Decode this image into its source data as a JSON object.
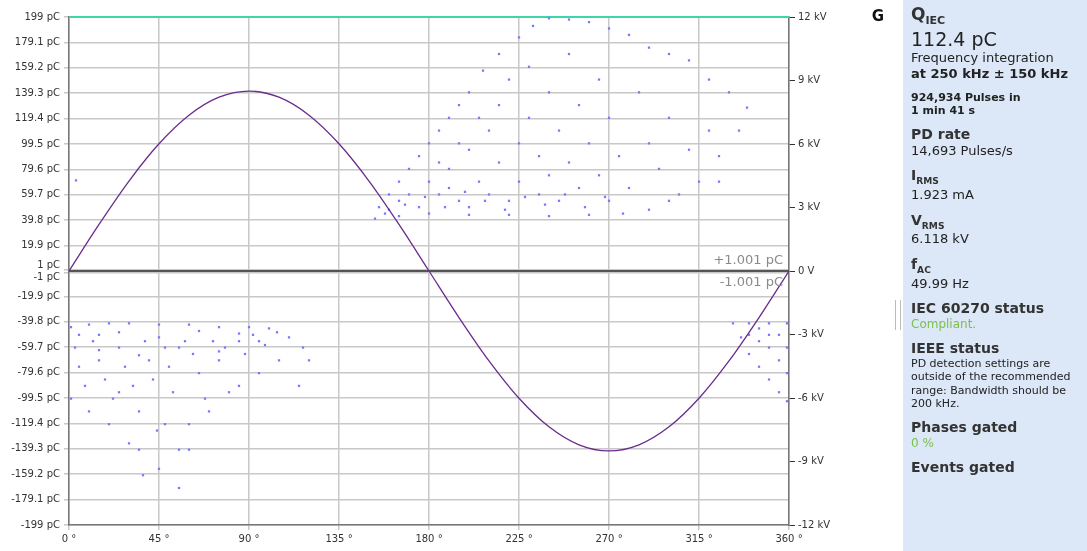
{
  "chart_data": [
    {
      "type": "scatter",
      "xlim": [
        0,
        360
      ],
      "xticks": [
        {
          "value": 0,
          "label": "0 °"
        },
        {
          "value": 45,
          "label": "45 °"
        },
        {
          "value": 90,
          "label": "90 °"
        },
        {
          "value": 135,
          "label": "135 °"
        },
        {
          "value": 180,
          "label": "180 °"
        },
        {
          "value": 225,
          "label": "225 °"
        },
        {
          "value": 270,
          "label": "270 °"
        },
        {
          "value": 315,
          "label": "315 °"
        },
        {
          "value": 360,
          "label": "360 °"
        }
      ],
      "ylim": [
        -199,
        199
      ],
      "yticks": [
        {
          "value": 199,
          "label": "199 pC"
        },
        {
          "value": 179.1,
          "label": "179.1 pC"
        },
        {
          "value": 159.2,
          "label": "159.2 pC"
        },
        {
          "value": 139.3,
          "label": "139.3 pC"
        },
        {
          "value": 119.4,
          "label": "119.4 pC"
        },
        {
          "value": 99.5,
          "label": "99.5 pC"
        },
        {
          "value": 79.6,
          "label": "79.6 pC"
        },
        {
          "value": 59.7,
          "label": "59.7 pC"
        },
        {
          "value": 39.8,
          "label": "39.8 pC"
        },
        {
          "value": 19.9,
          "label": "19.9 pC"
        },
        {
          "value": 1,
          "label": "1 pC"
        },
        {
          "value": -1,
          "label": "-1 pC"
        },
        {
          "value": -19.9,
          "label": "-19.9 pC"
        },
        {
          "value": -39.8,
          "label": "-39.8 pC"
        },
        {
          "value": -59.7,
          "label": "-59.7 pC"
        },
        {
          "value": -79.6,
          "label": "-79.6 pC"
        },
        {
          "value": -99.5,
          "label": "-99.5 pC"
        },
        {
          "value": -119.4,
          "label": "-119.4 pC"
        },
        {
          "value": -139.3,
          "label": "-139.3 pC"
        },
        {
          "value": -159.2,
          "label": "-159.2 pC"
        },
        {
          "value": -179.1,
          "label": "-179.1 pC"
        },
        {
          "value": -199,
          "label": "-199 pC"
        }
      ],
      "y2lim": [
        -12,
        12
      ],
      "y2ticks": [
        {
          "value": 12,
          "label": "12 kV"
        },
        {
          "value": 9,
          "label": "9 kV"
        },
        {
          "value": 6,
          "label": "6 kV"
        },
        {
          "value": 3,
          "label": "3 kV"
        },
        {
          "value": 0,
          "label": "0 V"
        },
        {
          "value": -3,
          "label": "-3 kV"
        },
        {
          "value": -6,
          "label": "-6 kV"
        },
        {
          "value": -9,
          "label": "-9 kV"
        },
        {
          "value": -12,
          "label": "-12 kV"
        }
      ],
      "grid": true,
      "legend": false,
      "marker": "square",
      "ref_lines": [
        {
          "axis": "y",
          "value": 199,
          "color": "#3ed6a6"
        },
        {
          "axis": "y",
          "value": 0,
          "color": "#555555"
        }
      ],
      "annotations": [
        "G",
        "+1.001 pC",
        "-1.001 pC"
      ],
      "series": [
        {
          "color": "#7878ff",
          "x": [
            153,
            155,
            160,
            165,
            170,
            175,
            180,
            185,
            190,
            195,
            200,
            207,
            215,
            225,
            232,
            240,
            250,
            260,
            270,
            280,
            290,
            300,
            310,
            320,
            330,
            339,
            335,
            325,
            315,
            300,
            290,
            277,
            260,
            240,
            220,
            200,
            180,
            165,
            160,
            165,
            170,
            175,
            180,
            185,
            190,
            195,
            200,
            205,
            210,
            210,
            215,
            215,
            220,
            220,
            225,
            225,
            230,
            230,
            235,
            235,
            240,
            240,
            245,
            245,
            250,
            250,
            255,
            255,
            260,
            265,
            265,
            270,
            270,
            275,
            280,
            285,
            290,
            295,
            300,
            305,
            310,
            320,
            325,
            185,
            195,
            205,
            200,
            190,
            3.5,
            158,
            168,
            178,
            188,
            198,
            208,
            218,
            228,
            238,
            248,
            258,
            268
          ],
          "values": [
            41,
            50,
            60,
            70,
            80,
            90,
            100,
            110,
            120,
            130,
            140,
            157,
            170,
            183,
            192,
            198,
            197,
            195,
            190,
            185,
            175,
            170,
            165,
            150,
            140,
            128,
            110,
            90,
            70,
            55,
            48,
            45,
            44,
            43,
            44,
            44,
            45,
            43,
            48,
            55,
            60,
            50,
            70,
            60,
            80,
            55,
            95,
            70,
            110,
            60,
            130,
            85,
            150,
            55,
            100,
            70,
            160,
            120,
            90,
            60,
            140,
            75,
            110,
            55,
            170,
            85,
            130,
            65,
            100,
            150,
            75,
            55,
            120,
            90,
            65,
            140,
            100,
            80,
            120,
            60,
            95,
            110,
            70,
            85,
            100,
            120,
            50,
            65,
            71,
            45,
            52,
            58,
            50,
            62,
            55,
            48,
            58,
            52,
            60,
            50,
            58
          ]
        },
        {
          "color": "#7878ff",
          "x": [
            1,
            10,
            20,
            30,
            45,
            60,
            75,
            90,
            100,
            104,
            110,
            117,
            105,
            95,
            80,
            70,
            60,
            55,
            45,
            37,
            30,
            20,
            10,
            1,
            3,
            5,
            8,
            12,
            15,
            18,
            22,
            25,
            28,
            32,
            35,
            38,
            40,
            42,
            44,
            48,
            50,
            52,
            55,
            58,
            62,
            65,
            68,
            72,
            75,
            78,
            85,
            88,
            92,
            98,
            48,
            35,
            25,
            15,
            60,
            85,
            120,
            115,
            332,
            340,
            350,
            359,
            359,
            359,
            359,
            355,
            350,
            345,
            340,
            336,
            340,
            345,
            350,
            355,
            350,
            355,
            345,
            5,
            15,
            25,
            35,
            45,
            55,
            65,
            75,
            85,
            95
          ],
          "values": [
            -44,
            -42,
            -41,
            -41,
            -42,
            -42,
            -44,
            -44,
            -45,
            -48,
            -52,
            -60,
            -70,
            -80,
            -95,
            -110,
            -140,
            -170,
            -155,
            -160,
            -135,
            -120,
            -110,
            -100,
            -60,
            -75,
            -90,
            -55,
            -70,
            -85,
            -100,
            -60,
            -75,
            -90,
            -110,
            -55,
            -70,
            -85,
            -125,
            -60,
            -75,
            -95,
            -140,
            -55,
            -65,
            -80,
            -100,
            -55,
            -70,
            -60,
            -55,
            -65,
            -50,
            -58,
            -120,
            -140,
            -95,
            -50,
            -120,
            -90,
            -70,
            -90,
            -41,
            -41,
            -41,
            -41,
            -60,
            -80,
            -102,
            -95,
            -85,
            -75,
            -65,
            -52,
            -50,
            -55,
            -60,
            -70,
            -50,
            -50,
            -45,
            -50,
            -62,
            -48,
            -66,
            -52,
            -60,
            -47,
            -63,
            -49,
            -55
          ]
        },
        {
          "type": "line",
          "axis": "y2",
          "color": "#6a2c8c",
          "marker": "none",
          "x": [
            0,
            15,
            30,
            45,
            60,
            75,
            90,
            105,
            120,
            135,
            150,
            165,
            180,
            195,
            210,
            225,
            240,
            255,
            270,
            285,
            300,
            315,
            330,
            345,
            360
          ],
          "values": [
            0,
            2.2,
            4.25,
            6.01,
            7.36,
            8.21,
            8.5,
            8.21,
            7.36,
            6.01,
            4.25,
            2.2,
            0,
            -2.2,
            -4.25,
            -6.01,
            -7.36,
            -8.21,
            -8.5,
            -8.21,
            -7.36,
            -6.01,
            -4.25,
            -2.2,
            0
          ]
        }
      ]
    },
    {
      "type": "other",
      "annotations": [
        "Q$_{IEC}$",
        "112.4 pC",
        "Frequency integration",
        "at 250 kHz ± 150 kHz",
        "924,934 Pulses in",
        "1 min 41 s",
        "PD rate",
        "14,693 Pulses/s",
        "I$_{RMS}$",
        "1.923 mA",
        "V$_{RMS}$",
        "6.118 kV",
        "f$_{AC}$",
        "49.99 Hz",
        "IEC 60270 status",
        "Compliant.",
        "IEEE status",
        "PD detection settings are outside of the recommended range: Bandwidth should be 200 kHz.",
        "Phases gated",
        "0 %",
        "Events gated"
      ]
    }
  ]
}
